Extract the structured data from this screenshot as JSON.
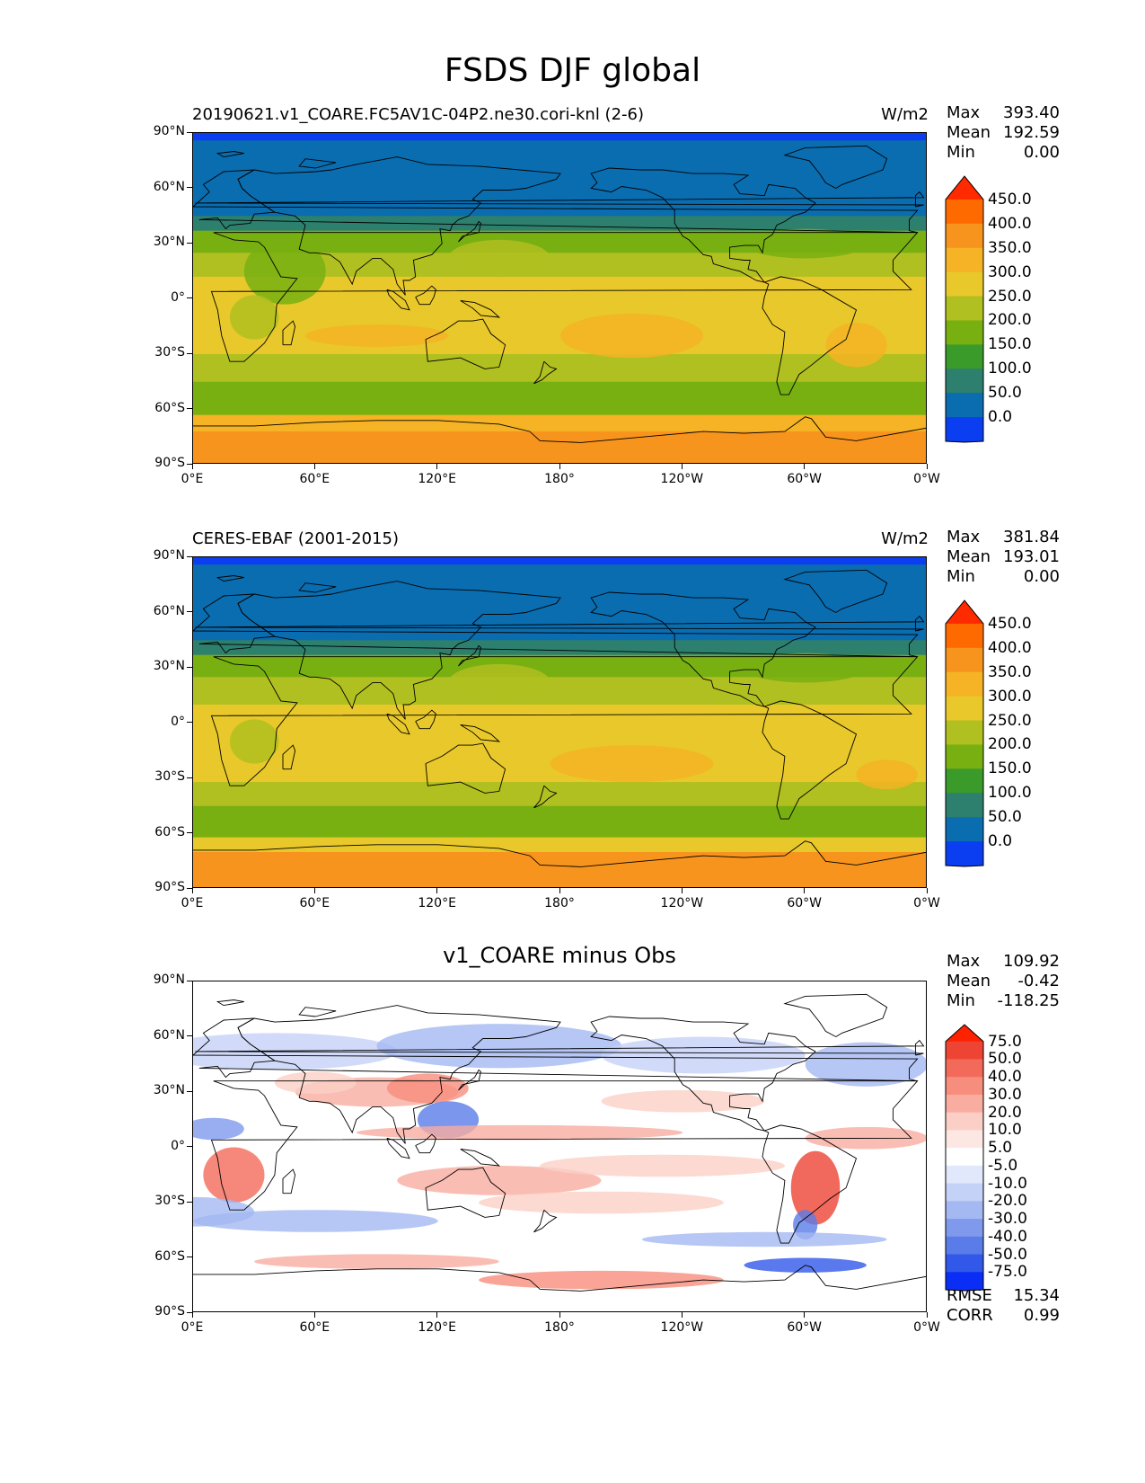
{
  "title": "FSDS DJF global",
  "panels": [
    {
      "id": "model",
      "left_title": "20190621.v1_COARE.FC5AV1C-04P2.ne30.cori-knl (2-6)",
      "right_title": "W/m2",
      "stats": [
        {
          "label": "Max",
          "value": "393.40"
        },
        {
          "label": "Mean",
          "value": "192.59"
        },
        {
          "label": "Min",
          "value": "0.00"
        }
      ],
      "colorbar": {
        "labels": [
          "450.0",
          "400.0",
          "350.0",
          "300.0",
          "250.0",
          "200.0",
          "150.0",
          "100.0",
          "50.0",
          "0.0"
        ],
        "colors": [
          "#ff2a00",
          "#ff6a00",
          "#f7941d",
          "#f5b325",
          "#e8c82a",
          "#b0c020",
          "#78b012",
          "#3a9a2a",
          "#2d7f6e",
          "#0a6db0",
          "#0a3ef0"
        ]
      }
    },
    {
      "id": "obs",
      "left_title": "CERES-EBAF (2001-2015)",
      "right_title": "W/m2",
      "stats": [
        {
          "label": "Max",
          "value": "381.84"
        },
        {
          "label": "Mean",
          "value": "193.01"
        },
        {
          "label": "Min",
          "value": "0.00"
        }
      ],
      "colorbar": {
        "labels": [
          "450.0",
          "400.0",
          "350.0",
          "300.0",
          "250.0",
          "200.0",
          "150.0",
          "100.0",
          "50.0",
          "0.0"
        ],
        "colors": [
          "#ff2a00",
          "#ff6a00",
          "#f7941d",
          "#f5b325",
          "#e8c82a",
          "#b0c020",
          "#78b012",
          "#3a9a2a",
          "#2d7f6e",
          "#0a6db0",
          "#0a3ef0"
        ]
      }
    },
    {
      "id": "diff",
      "center_title": "v1_COARE minus Obs",
      "stats": [
        {
          "label": "Max",
          "value": "109.92"
        },
        {
          "label": "Mean",
          "value": "-0.42"
        },
        {
          "label": "Min",
          "value": "-118.25"
        }
      ],
      "extra_stats": [
        {
          "label": "RMSE",
          "value": "15.34"
        },
        {
          "label": "CORR",
          "value": "0.99"
        }
      ],
      "colorbar": {
        "labels": [
          "75.0",
          "50.0",
          "40.0",
          "30.0",
          "20.0",
          "10.0",
          "5.0",
          "-5.0",
          "-10.0",
          "-20.0",
          "-30.0",
          "-40.0",
          "-50.0",
          "-75.0"
        ],
        "colors": [
          "#ff2200",
          "#ee4433",
          "#f36a5a",
          "#f78d7d",
          "#f9ada0",
          "#fbcfc6",
          "#fde7e2",
          "#ffffff",
          "#e2e8fb",
          "#c5d2f7",
          "#a4b8f2",
          "#7f9aec",
          "#5a7ce8",
          "#3258ea",
          "#0a2ef5"
        ]
      }
    }
  ],
  "x_ticks": [
    "0°E",
    "60°E",
    "120°E",
    "180°",
    "120°W",
    "60°W",
    "0°W"
  ],
  "y_ticks": [
    "90°N",
    "60°N",
    "30°N",
    "0°",
    "30°S",
    "60°S",
    "90°S"
  ]
}
